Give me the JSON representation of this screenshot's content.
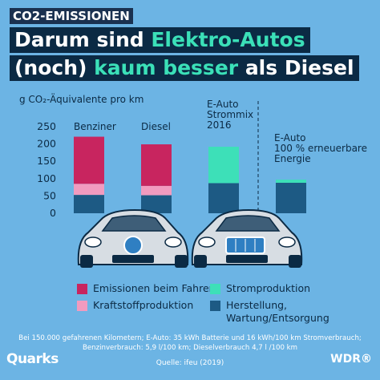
{
  "kicker": "CO2-EMISSIONEN",
  "headline": {
    "line1_part1": "Darum sind ",
    "line1_accent": "Elektro-Autos",
    "line2_part1": "(noch) ",
    "line2_accent": "kaum besser",
    "line2_part2": " als Diesel"
  },
  "colors": {
    "background": "#6cb4e4",
    "emissionen_fahren": "#c8255f",
    "kraftstoffproduktion": "#f19bbf",
    "stromproduktion": "#3de0b8",
    "herstellung": "#1d5a84",
    "accent_text": "#3be0b8"
  },
  "chart_data": {
    "type": "bar",
    "stacked": true,
    "ylabel": "g CO₂-Äquivalente pro km",
    "ylim": [
      0,
      250
    ],
    "yticks": [
      0,
      50,
      100,
      150,
      200,
      250
    ],
    "categories": [
      "Benziner",
      "Diesel",
      "E-Auto Strommix 2016",
      "E-Auto 100 % erneuerbare Energie"
    ],
    "category_labels": [
      [
        "Benziner"
      ],
      [
        "Diesel"
      ],
      [
        "E-Auto",
        "Strommix",
        "2016"
      ],
      [
        "E-Auto",
        "100 % erneuerbare",
        "Energie"
      ]
    ],
    "series": [
      {
        "name": "Herstellung, Wartung/Entsorgung",
        "values": [
          53,
          52,
          87,
          88
        ],
        "color": "#1d5a84"
      },
      {
        "name": "Kraftstoffproduktion",
        "values": [
          32,
          27,
          0,
          0
        ],
        "color": "#f19bbf"
      },
      {
        "name": "Emissionen beim Fahren",
        "values": [
          136,
          120,
          0,
          0
        ],
        "color": "#c8255f"
      },
      {
        "name": "Stromproduktion",
        "values": [
          0,
          0,
          105,
          9
        ],
        "color": "#3de0b8"
      }
    ],
    "annotations": [
      "Dashed vertical divider between E-Auto Strommix 2016 and E-Auto 100 % erneuerbare Energie"
    ]
  },
  "legend": {
    "items": [
      {
        "label": "Emissionen beim Fahren",
        "color": "#c8255f"
      },
      {
        "label": "Stromproduktion",
        "color": "#3de0b8"
      },
      {
        "label": "Kraftstoffproduktion",
        "color": "#f19bbf"
      },
      {
        "label": "Herstellung, Wartung/Entsorgung",
        "color": "#1d5a84"
      }
    ]
  },
  "footnote_line1": "Bei 150.000 gefahrenen Kilometern; E-Auto: 35 kWh Batterie und 16 kWh/100 km Stromverbrauch;",
  "footnote_line2": "Benzinverbrauch: 5,9 l/100 km; Dieselverbrauch 4,7 l /100 km",
  "source": "Quelle: ifeu (2019)",
  "brand_left": "Quarks",
  "brand_right": "WDR®"
}
